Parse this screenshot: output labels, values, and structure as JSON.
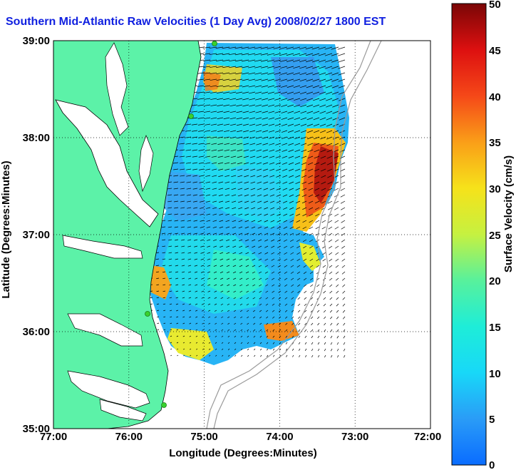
{
  "title": "Southern Mid-Atlantic Raw Velocities (1 Day Avg) 2008/02/27 1800 EST",
  "xlabel": "Longitude (Degrees:Minutes)",
  "ylabel": "Latitude (Degrees:Minutes)",
  "x_ticks": [
    "77:00",
    "76:00",
    "75:00",
    "74:00",
    "73:00",
    "72:00"
  ],
  "y_ticks": [
    "39:00",
    "38:00",
    "37:00",
    "36:00",
    "35:00"
  ],
  "colorbar": {
    "label": "Surface Velocity (cm/s)",
    "ticks": [
      "50",
      "45",
      "40",
      "35",
      "30",
      "25",
      "20",
      "15",
      "10",
      "5",
      "0"
    ],
    "range": [
      0,
      50
    ]
  },
  "colors": {
    "land": "#5cf2a8",
    "title": "#1020e0",
    "station": "#39d12f"
  }
}
